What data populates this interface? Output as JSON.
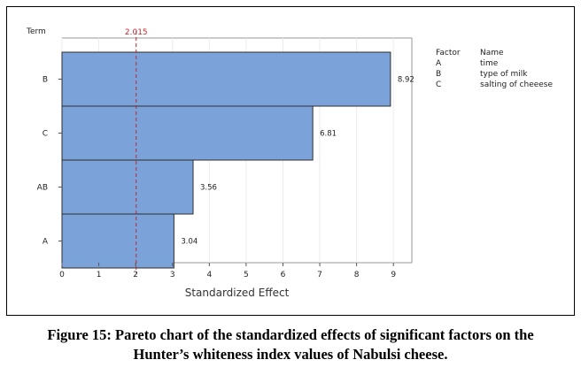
{
  "chart_data": {
    "type": "bar",
    "orientation": "horizontal",
    "y_axis_title": "Term",
    "xlabel": "Standardized Effect",
    "categories": [
      "B",
      "C",
      "AB",
      "A"
    ],
    "values": [
      8.92,
      6.81,
      3.56,
      3.04
    ],
    "value_labels": [
      "8.92",
      "6.81",
      "3.56",
      "3.04"
    ],
    "xlim": [
      0,
      9.5
    ],
    "xticks": [
      0,
      1,
      2,
      3,
      4,
      5,
      6,
      7,
      8,
      9
    ],
    "reference_line": {
      "value": 2.015,
      "label": "2.015",
      "color": "#c0282d"
    },
    "bar_color": "#7ba3d9",
    "bar_edge_color": "#2e2e2e",
    "grid": true
  },
  "legend": {
    "header": {
      "factor": "Factor",
      "name": "Name"
    },
    "rows": [
      {
        "factor": "A",
        "name": "time"
      },
      {
        "factor": "B",
        "name": "type of milk"
      },
      {
        "factor": "C",
        "name": "salting of cheeese"
      }
    ]
  },
  "caption": {
    "line1": "Figure 15: Pareto chart of the standardized effects of significant factors on the",
    "line2": "Hunter’s whiteness index values of Nabulsi cheese."
  }
}
